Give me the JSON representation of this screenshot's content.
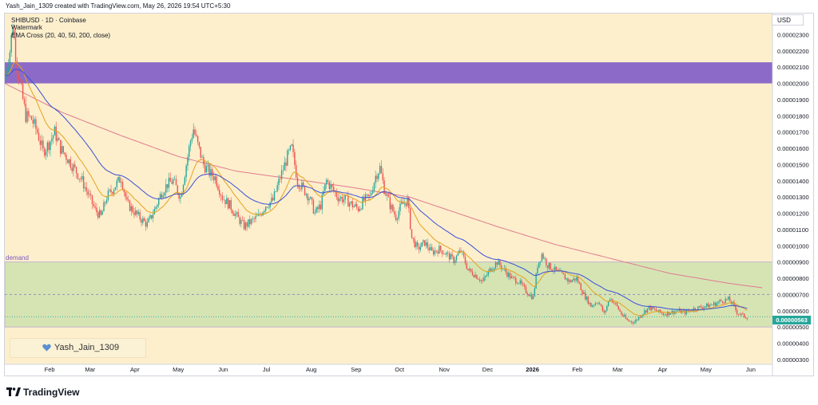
{
  "header": {
    "credit": "Yash_Jain_1309 created with TradingView.com, May 26, 2026 19:54 UTC+5:30"
  },
  "legend": {
    "symbol_line": "SHIBUSD · 1D · Coinbase",
    "watermark_line": "Watermark",
    "indicator_line": "EMA Cross (20, 40, 50, 200, close)"
  },
  "currency": "USD",
  "zone_label": "demand",
  "watermark": {
    "text": "Yash_Jain_1309"
  },
  "footer": {
    "brand": "TradingView"
  },
  "colors": {
    "background": "#fdefcc",
    "resistance_zone": "#8c6bc8",
    "demand_zone": "#d6e4b4",
    "ema_fast": "#e6a21c",
    "ema_mid": "#3b4fd8",
    "ema_200": "#e07a8e",
    "candle_up": "#26a69a",
    "candle_down": "#ef5350",
    "dashed_line": "#9a8fb5",
    "price_dotted": "#26a69a"
  },
  "chart_data": {
    "type": "candlestick",
    "symbol": "SHIBUSD",
    "interval": "1D",
    "exchange": "Coinbase",
    "y_axis": {
      "ticks": [
        "0.00002300",
        "0.00002200",
        "0.00002100",
        "0.00002000",
        "0.00001900",
        "0.00001800",
        "0.00001700",
        "0.00001600",
        "0.00001500",
        "0.00001400",
        "0.00001300",
        "0.00001200",
        "0.00001100",
        "0.00001000",
        "0.00000900",
        "0.00000800",
        "0.00000700",
        "0.00000600",
        "0.00000500",
        "0.00000400",
        "0.00000300"
      ],
      "range": [
        2.7e-06,
        2.43e-05
      ]
    },
    "x_axis": {
      "ticks": [
        "Feb",
        "Mar",
        "Apr",
        "May",
        "Jun",
        "Jul",
        "Aug",
        "Sep",
        "Oct",
        "Nov",
        "Dec",
        "2026",
        "Feb",
        "Mar",
        "Apr",
        "May",
        "Jun"
      ],
      "month_starts": [
        31,
        59,
        90,
        120,
        151,
        181,
        212,
        243,
        273,
        304,
        334,
        365,
        396,
        424,
        455,
        485,
        516
      ],
      "range": [
        0,
        531
      ]
    },
    "current_price": {
      "label": "0.00000563",
      "value": 5.63e-06
    },
    "zones": [
      {
        "name": "resistance",
        "low": 2e-05,
        "high": 2.13e-05
      },
      {
        "name": "demand",
        "low": 5e-06,
        "high": 9e-06
      }
    ],
    "levels": [
      {
        "value": 7e-06,
        "style": "dashed"
      }
    ],
    "price_path": [
      [
        0,
        2.05e-05
      ],
      [
        3,
        2.2e-05
      ],
      [
        5,
        2.36e-05
      ],
      [
        8,
        2.1e-05
      ],
      [
        11,
        1.95e-05
      ],
      [
        14,
        1.8e-05
      ],
      [
        18,
        1.78e-05
      ],
      [
        22,
        1.7e-05
      ],
      [
        26,
        1.58e-05
      ],
      [
        30,
        1.63e-05
      ],
      [
        34,
        1.7e-05
      ],
      [
        38,
        1.6e-05
      ],
      [
        42,
        1.55e-05
      ],
      [
        48,
        1.47e-05
      ],
      [
        53,
        1.4e-05
      ],
      [
        58,
        1.3e-05
      ],
      [
        62,
        1.22e-05
      ],
      [
        66,
        1.18e-05
      ],
      [
        70,
        1.3e-05
      ],
      [
        75,
        1.36e-05
      ],
      [
        80,
        1.42e-05
      ],
      [
        84,
        1.26e-05
      ],
      [
        88,
        1.22e-05
      ],
      [
        92,
        1.18e-05
      ],
      [
        98,
        1.13e-05
      ],
      [
        103,
        1.22e-05
      ],
      [
        108,
        1.33e-05
      ],
      [
        112,
        1.38e-05
      ],
      [
        116,
        1.4e-05
      ],
      [
        121,
        1.3e-05
      ],
      [
        124,
        1.45e-05
      ],
      [
        128,
        1.65e-05
      ],
      [
        130,
        1.72e-05
      ],
      [
        133,
        1.62e-05
      ],
      [
        137,
        1.5e-05
      ],
      [
        141,
        1.45e-05
      ],
      [
        145,
        1.42e-05
      ],
      [
        150,
        1.3e-05
      ],
      [
        155,
        1.25e-05
      ],
      [
        160,
        1.18e-05
      ],
      [
        165,
        1.12e-05
      ],
      [
        170,
        1.15e-05
      ],
      [
        175,
        1.18e-05
      ],
      [
        180,
        1.25e-05
      ],
      [
        185,
        1.28e-05
      ],
      [
        190,
        1.42e-05
      ],
      [
        195,
        1.55e-05
      ],
      [
        198,
        1.6e-05
      ],
      [
        202,
        1.4e-05
      ],
      [
        206,
        1.35e-05
      ],
      [
        210,
        1.3e-05
      ],
      [
        214,
        1.2e-05
      ],
      [
        218,
        1.25e-05
      ],
      [
        222,
        1.4e-05
      ],
      [
        226,
        1.35e-05
      ],
      [
        230,
        1.3e-05
      ],
      [
        236,
        1.28e-05
      ],
      [
        240,
        1.25e-05
      ],
      [
        244,
        1.23e-05
      ],
      [
        248,
        1.28e-05
      ],
      [
        252,
        1.3e-05
      ],
      [
        256,
        1.43e-05
      ],
      [
        259,
        1.48e-05
      ],
      [
        262,
        1.35e-05
      ],
      [
        266,
        1.25e-05
      ],
      [
        270,
        1.18e-05
      ],
      [
        274,
        1.25e-05
      ],
      [
        278,
        1.28e-05
      ],
      [
        281,
        1.05e-05
      ],
      [
        285,
        9.8e-06
      ],
      [
        290,
        1.02e-05
      ],
      [
        295,
        9.6e-06
      ],
      [
        300,
        9.8e-06
      ],
      [
        305,
        9.5e-06
      ],
      [
        310,
        9.1e-06
      ],
      [
        315,
        9.7e-06
      ],
      [
        320,
        8.5e-06
      ],
      [
        325,
        8.2e-06
      ],
      [
        330,
        7.8e-06
      ],
      [
        335,
        8.5e-06
      ],
      [
        340,
        9e-06
      ],
      [
        345,
        8.5e-06
      ],
      [
        350,
        8e-06
      ],
      [
        355,
        7.8e-06
      ],
      [
        360,
        7.2e-06
      ],
      [
        365,
        6.8e-06
      ],
      [
        368,
        8.8e-06
      ],
      [
        371,
        9.5e-06
      ],
      [
        375,
        8.8e-06
      ],
      [
        380,
        8.5e-06
      ],
      [
        385,
        8.2e-06
      ],
      [
        390,
        7.8e-06
      ],
      [
        395,
        8e-06
      ],
      [
        400,
        7e-06
      ],
      [
        405,
        6.3e-06
      ],
      [
        410,
        6.6e-06
      ],
      [
        414,
        5.8e-06
      ],
      [
        418,
        6.8e-06
      ],
      [
        422,
        6.4e-06
      ],
      [
        426,
        5.8e-06
      ],
      [
        430,
        5.4e-06
      ],
      [
        435,
        5.3e-06
      ],
      [
        440,
        5.8e-06
      ],
      [
        445,
        6.2e-06
      ],
      [
        450,
        6e-06
      ],
      [
        455,
        5.8e-06
      ],
      [
        460,
        5.9e-06
      ],
      [
        465,
        6e-06
      ],
      [
        470,
        5.9e-06
      ],
      [
        475,
        6.1e-06
      ],
      [
        480,
        6.2e-06
      ],
      [
        485,
        6.3e-06
      ],
      [
        490,
        6.4e-06
      ],
      [
        495,
        6.6e-06
      ],
      [
        500,
        6.7e-06
      ],
      [
        503,
        6.4e-06
      ],
      [
        506,
        5.9e-06
      ],
      [
        510,
        5.7e-06
      ],
      [
        513,
        5.6e-06
      ]
    ],
    "ema_200": [
      [
        0,
        2e-05
      ],
      [
        40,
        1.82e-05
      ],
      [
        80,
        1.68e-05
      ],
      [
        120,
        1.55e-05
      ],
      [
        160,
        1.46e-05
      ],
      [
        200,
        1.41e-05
      ],
      [
        240,
        1.36e-05
      ],
      [
        280,
        1.3e-05
      ],
      [
        300,
        1.24e-05
      ],
      [
        340,
        1.12e-05
      ],
      [
        380,
        1.01e-05
      ],
      [
        420,
        9.2e-06
      ],
      [
        460,
        8.3e-06
      ],
      [
        500,
        7.7e-06
      ],
      [
        525,
        7.4e-06
      ]
    ]
  }
}
